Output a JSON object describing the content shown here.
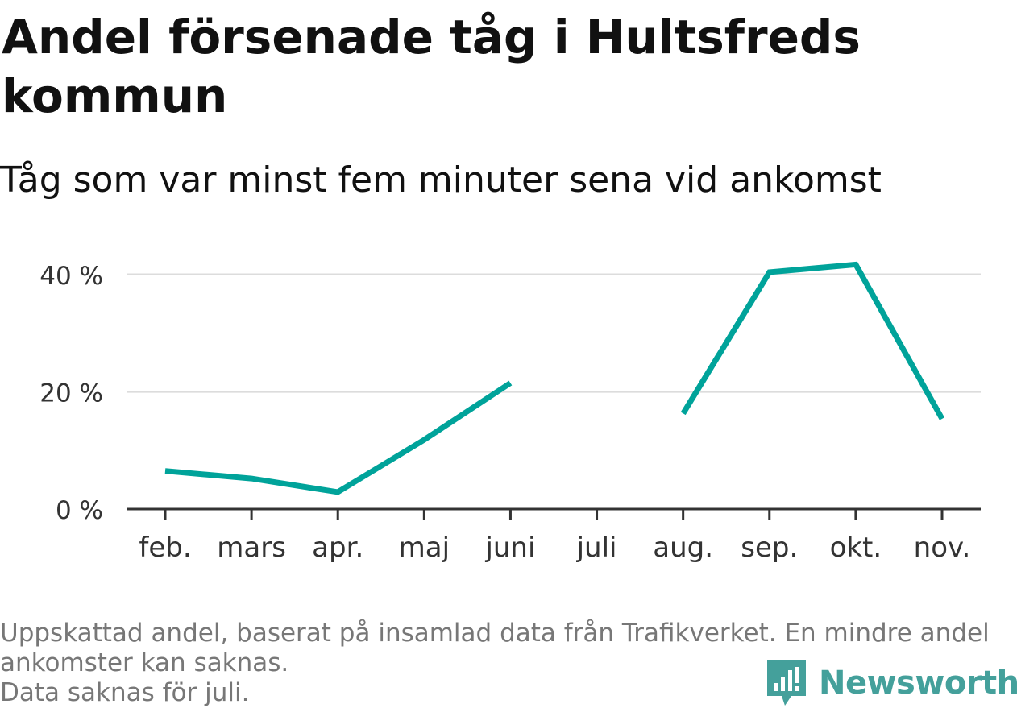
{
  "title": "Andel försenade tåg i Hultsfreds kommun",
  "subtitle": "Tåg som var minst fem minuter sena vid ankomst",
  "footnote": {
    "line1": "Uppskattad andel, baserat på insamlad data från Trafikverket. En mindre andel",
    "line2": "ankomster kan saknas.",
    "line3": "Data saknas för juli."
  },
  "brand": {
    "name": "Newsworthy",
    "icon": "newsworthy-logo-icon",
    "color": "#44a09b"
  },
  "chart_data": {
    "type": "line",
    "categories": [
      "feb.",
      "mars",
      "apr.",
      "maj",
      "juni",
      "juli",
      "aug.",
      "sep.",
      "okt.",
      "nov."
    ],
    "series": [
      {
        "values": [
          6.5,
          5.2,
          2.9,
          11.8,
          21.5,
          null,
          16.3,
          40.4,
          41.7,
          15.4
        ],
        "color": "#00a39a"
      }
    ],
    "y_ticks": [
      0,
      20,
      40
    ],
    "y_tick_labels": [
      "0 %",
      "20 %",
      "40 %"
    ],
    "ylim": [
      0,
      45
    ],
    "grid": true,
    "legend": "none",
    "missing": [
      "juli"
    ]
  }
}
